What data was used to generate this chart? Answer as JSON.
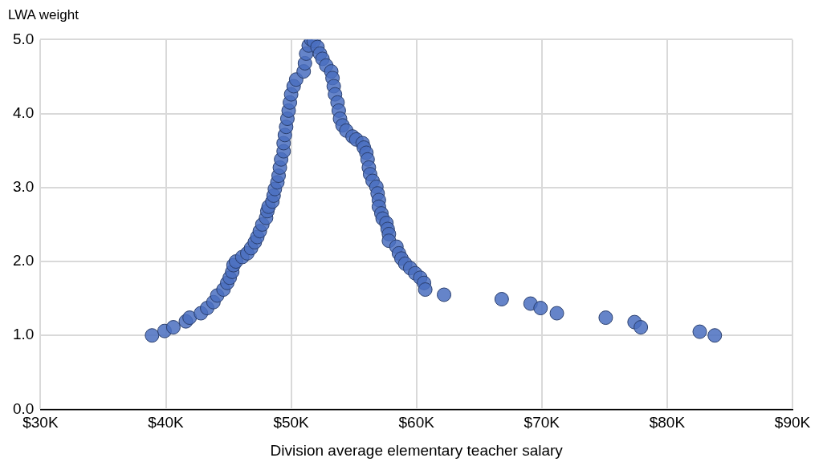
{
  "chart_data": {
    "type": "scatter",
    "xlabel": "Division average elementary teacher salary",
    "ylabel": "LWA weight",
    "xlim": [
      30000,
      90000
    ],
    "xticks": [
      {
        "value": 30000,
        "label": "$30K"
      },
      {
        "value": 40000,
        "label": "$40K"
      },
      {
        "value": 50000,
        "label": "$50K"
      },
      {
        "value": 60000,
        "label": "$60K"
      },
      {
        "value": 70000,
        "label": "$70K"
      },
      {
        "value": 80000,
        "label": "$80K"
      },
      {
        "value": 90000,
        "label": "$90K"
      }
    ],
    "ylim": [
      0,
      5
    ],
    "yticks": [
      {
        "value": 0,
        "label": "0.0"
      },
      {
        "value": 1,
        "label": "1.0"
      },
      {
        "value": 2,
        "label": "2.0"
      },
      {
        "value": 3,
        "label": "3.0"
      },
      {
        "value": 4,
        "label": "4.0"
      },
      {
        "value": 5,
        "label": "5.0"
      }
    ],
    "grid": true,
    "legend": false,
    "marker": "circle",
    "series": [
      {
        "color": "#4a6fbf",
        "x": [
          38900,
          39900,
          40600,
          41600,
          41900,
          42800,
          43300,
          43800,
          44100,
          44600,
          44900,
          45100,
          45300,
          45400,
          45600,
          46100,
          46500,
          46800,
          47100,
          47300,
          47500,
          47700,
          48000,
          48100,
          48200,
          48500,
          48600,
          48700,
          48900,
          49000,
          49100,
          49200,
          49400,
          49400,
          49500,
          49600,
          49700,
          49800,
          49900,
          50000,
          50200,
          50400,
          51000,
          51100,
          51200,
          51400,
          51600,
          51800,
          52100,
          52300,
          52500,
          52800,
          53200,
          53300,
          53400,
          53500,
          53700,
          53800,
          53900,
          54100,
          54400,
          54900,
          55200,
          55700,
          55800,
          56000,
          56100,
          56200,
          56300,
          56500,
          56800,
          56900,
          57000,
          57000,
          57200,
          57300,
          57600,
          57700,
          57800,
          57800,
          58400,
          58600,
          58800,
          59100,
          59500,
          59900,
          60300,
          60600,
          60700,
          62200,
          66800,
          69100,
          69900,
          71200,
          75100,
          77400,
          77900,
          82600,
          83800
        ],
        "values": [
          1.0,
          1.06,
          1.11,
          1.19,
          1.24,
          1.3,
          1.37,
          1.45,
          1.54,
          1.62,
          1.71,
          1.78,
          1.86,
          1.95,
          2.0,
          2.06,
          2.11,
          2.18,
          2.26,
          2.33,
          2.41,
          2.5,
          2.59,
          2.68,
          2.74,
          2.81,
          2.89,
          2.98,
          3.07,
          3.16,
          3.27,
          3.38,
          3.49,
          3.6,
          3.71,
          3.82,
          3.93,
          4.04,
          4.15,
          4.26,
          4.37,
          4.46,
          4.57,
          4.68,
          4.81,
          4.92,
          5.0,
          4.98,
          4.9,
          4.81,
          4.74,
          4.65,
          4.57,
          4.48,
          4.37,
          4.26,
          4.15,
          4.04,
          3.93,
          3.84,
          3.77,
          3.69,
          3.65,
          3.6,
          3.54,
          3.47,
          3.38,
          3.27,
          3.18,
          3.09,
          3.01,
          2.92,
          2.83,
          2.74,
          2.65,
          2.58,
          2.52,
          2.44,
          2.37,
          2.28,
          2.2,
          2.11,
          2.04,
          1.97,
          1.91,
          1.84,
          1.78,
          1.71,
          1.62,
          1.55,
          1.49,
          1.43,
          1.37,
          1.3,
          1.24,
          1.18,
          1.11,
          1.05,
          1.0
        ]
      }
    ]
  }
}
